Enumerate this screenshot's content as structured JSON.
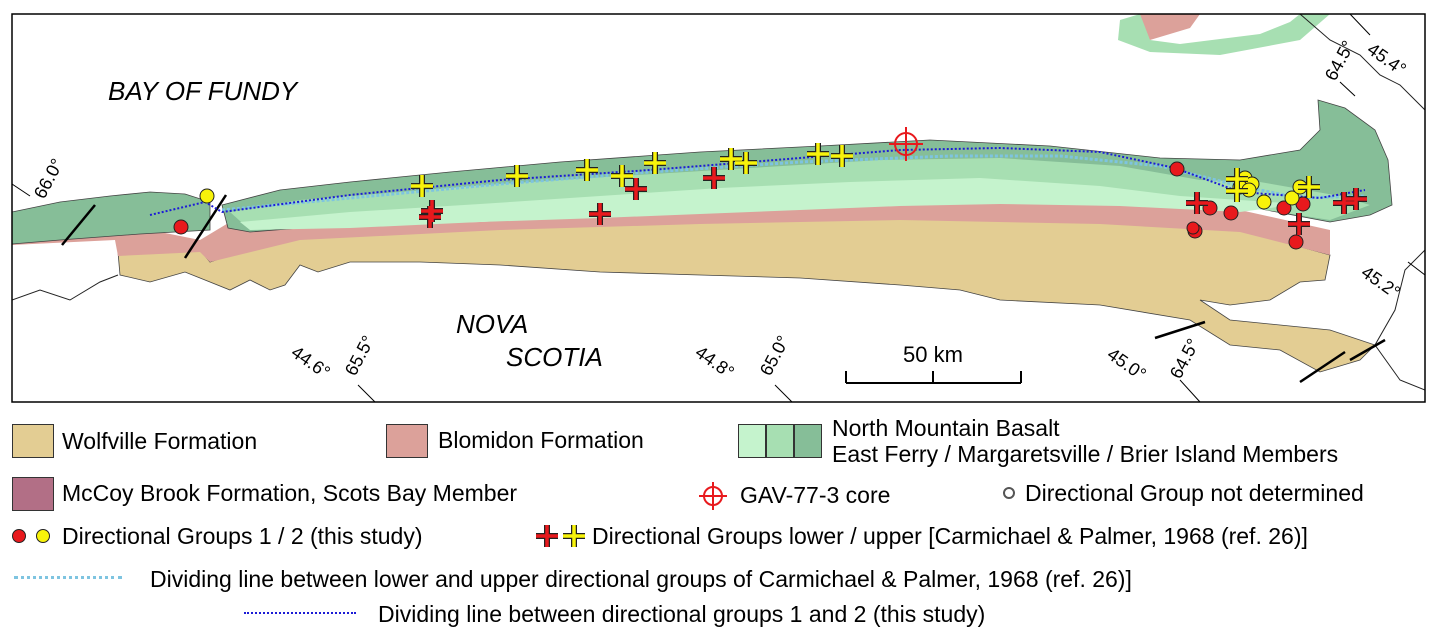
{
  "map": {
    "sea_label": "BAY OF FUNDY",
    "land_label_line1": "NOVA",
    "land_label_line2": "SCOTIA",
    "scale_label": "50 km",
    "coord_labels": {
      "lon_66_0": "66.0°",
      "lat_44_6": "44.6°",
      "lon_65_5": "65.5°",
      "lat_44_8": "44.8°",
      "lon_65_0": "65.0°",
      "lat_45_0": "45.0°",
      "lon_64_5_bottom": "64.5°",
      "lon_64_5_top": "64.5°",
      "lat_45_4": "45.4°",
      "lat_45_2": "45.2°"
    },
    "colors": {
      "wolfville": "#e3cd93",
      "blomidon": "#dca19a",
      "east_ferry": "#c5f3cd",
      "margaretsville": "#a7dfb2",
      "brier_island": "#86be98",
      "mccoy_brook": "#b26f86",
      "group1_red": "#e8191d",
      "group2_yellow": "#f8f30a",
      "core_red": "#e8191d",
      "line_lower_upper": "#7ec4e0",
      "line_groups_1_2": "#1c1cd6"
    }
  },
  "legend": {
    "wolfville": "Wolfville Formation",
    "blomidon": "Blomidon Formation",
    "basalt_line1": "North Mountain Basalt",
    "basalt_line2": "East Ferry / Margaretsville / Brier Island Members",
    "mccoy": "McCoy Brook Formation, Scots Bay Member",
    "core": "GAV-77-3 core",
    "undetermined": "Directional Group not determined",
    "groups_this_study": "Directional Groups 1 / 2 (this study)",
    "groups_cp": "Directional Groups lower / upper [Carmichael & Palmer, 1968 (ref. 26)]",
    "divide_cp": "Dividing line between lower and upper directional groups of Carmichael & Palmer, 1968 (ref. 26)]",
    "divide_this": "Dividing line between directional groups 1 and 2 (this study)"
  }
}
